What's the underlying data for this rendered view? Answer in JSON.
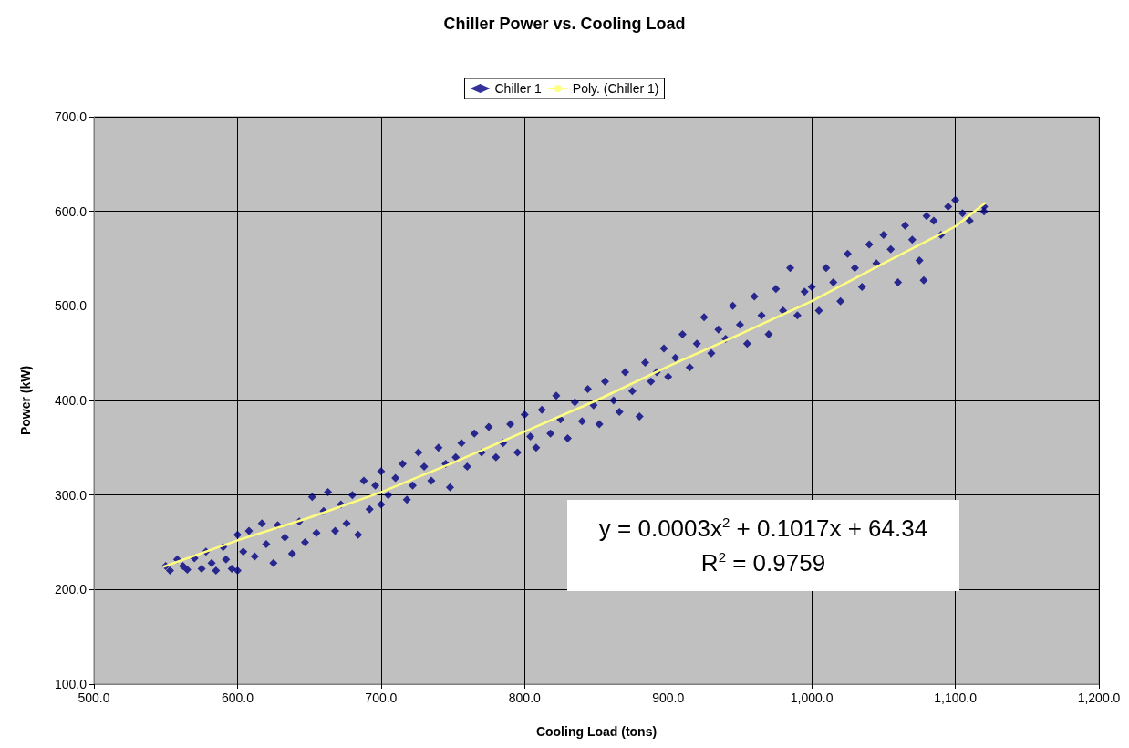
{
  "chart_data": {
    "type": "scatter",
    "title": "Chiller Power vs. Cooling Load",
    "xlabel": "Cooling Load (tons)",
    "ylabel": "Power (kW)",
    "xlim": [
      500,
      1200
    ],
    "xticks": [
      {
        "value": 500,
        "label": "500.0"
      },
      {
        "value": 600,
        "label": "600.0"
      },
      {
        "value": 700,
        "label": "700.0"
      },
      {
        "value": 800,
        "label": "800.0"
      },
      {
        "value": 900,
        "label": "900.0"
      },
      {
        "value": 1000,
        "label": "1,000.0"
      },
      {
        "value": 1100,
        "label": "1,100.0"
      },
      {
        "value": 1200,
        "label": "1,200.0"
      }
    ],
    "ylim": [
      100,
      700
    ],
    "yticks": [
      {
        "value": 100,
        "label": "100.0"
      },
      {
        "value": 200,
        "label": "200.0"
      },
      {
        "value": 300,
        "label": "300.0"
      },
      {
        "value": 400,
        "label": "400.0"
      },
      {
        "value": 500,
        "label": "500.0"
      },
      {
        "value": 600,
        "label": "600.0"
      },
      {
        "value": 700,
        "label": "700.0"
      }
    ],
    "grid": true,
    "legend": "top",
    "annotations": [
      "y = 0.0003x$^{2}$ + 0.1017x + 64.34",
      "R$^{2}$ = 0.9759"
    ],
    "series": [
      {
        "name": "Chiller 1",
        "marker": "diamond",
        "color": "#000080",
        "x": [
          550,
          553,
          558,
          562,
          565,
          570,
          575,
          578,
          582,
          585,
          590,
          592,
          596,
          600,
          600,
          604,
          608,
          612,
          617,
          620,
          625,
          628,
          633,
          638,
          643,
          647,
          652,
          655,
          660,
          663,
          668,
          672,
          676,
          680,
          684,
          688,
          692,
          696,
          700,
          700,
          705,
          710,
          715,
          718,
          722,
          726,
          730,
          735,
          740,
          745,
          748,
          752,
          756,
          760,
          765,
          770,
          775,
          780,
          785,
          790,
          795,
          800,
          804,
          808,
          812,
          818,
          822,
          825,
          830,
          835,
          840,
          844,
          848,
          852,
          856,
          862,
          866,
          870,
          875,
          880,
          884,
          888,
          892,
          897,
          900,
          905,
          910,
          915,
          920,
          925,
          930,
          935,
          940,
          945,
          950,
          955,
          960,
          965,
          970,
          975,
          980,
          985,
          990,
          995,
          1000,
          1005,
          1010,
          1015,
          1020,
          1025,
          1030,
          1035,
          1040,
          1045,
          1050,
          1055,
          1060,
          1065,
          1070,
          1075,
          1078,
          1080,
          1085,
          1090,
          1095,
          1100,
          1105,
          1110,
          1120,
          1120
        ],
        "values": [
          225,
          220,
          232,
          225,
          221,
          233,
          222,
          240,
          228,
          220,
          245,
          232,
          222,
          258,
          220,
          240,
          262,
          235,
          270,
          248,
          228,
          268,
          255,
          238,
          272,
          250,
          298,
          260,
          283,
          303,
          262,
          290,
          270,
          300,
          258,
          315,
          285,
          310,
          290,
          325,
          300,
          318,
          333,
          295,
          310,
          345,
          330,
          315,
          350,
          333,
          308,
          340,
          355,
          330,
          365,
          345,
          372,
          340,
          355,
          375,
          345,
          385,
          362,
          350,
          390,
          365,
          405,
          380,
          360,
          398,
          378,
          412,
          395,
          375,
          420,
          400,
          388,
          430,
          410,
          383,
          440,
          420,
          430,
          455,
          425,
          445,
          470,
          435,
          460,
          488,
          450,
          475,
          465,
          500,
          480,
          460,
          510,
          490,
          470,
          518,
          495,
          540,
          490,
          515,
          520,
          495,
          540,
          525,
          505,
          555,
          540,
          520,
          565,
          545,
          575,
          560,
          525,
          585,
          570,
          548,
          527,
          595,
          590,
          575,
          605,
          612,
          598,
          590,
          600,
          605
        ]
      },
      {
        "name": "Poly. (Chiller 1)",
        "type": "line",
        "marker": "none",
        "line_style": "solid",
        "color": "#ffff80",
        "x": [
          548,
          600,
          650,
          700,
          750,
          800,
          850,
          900,
          950,
          1000,
          1050,
          1100,
          1121
        ],
        "values": [
          224,
          252,
          276,
          303,
          334,
          367,
          400,
          436,
          470,
          505,
          545,
          584,
          609
        ]
      }
    ]
  }
}
